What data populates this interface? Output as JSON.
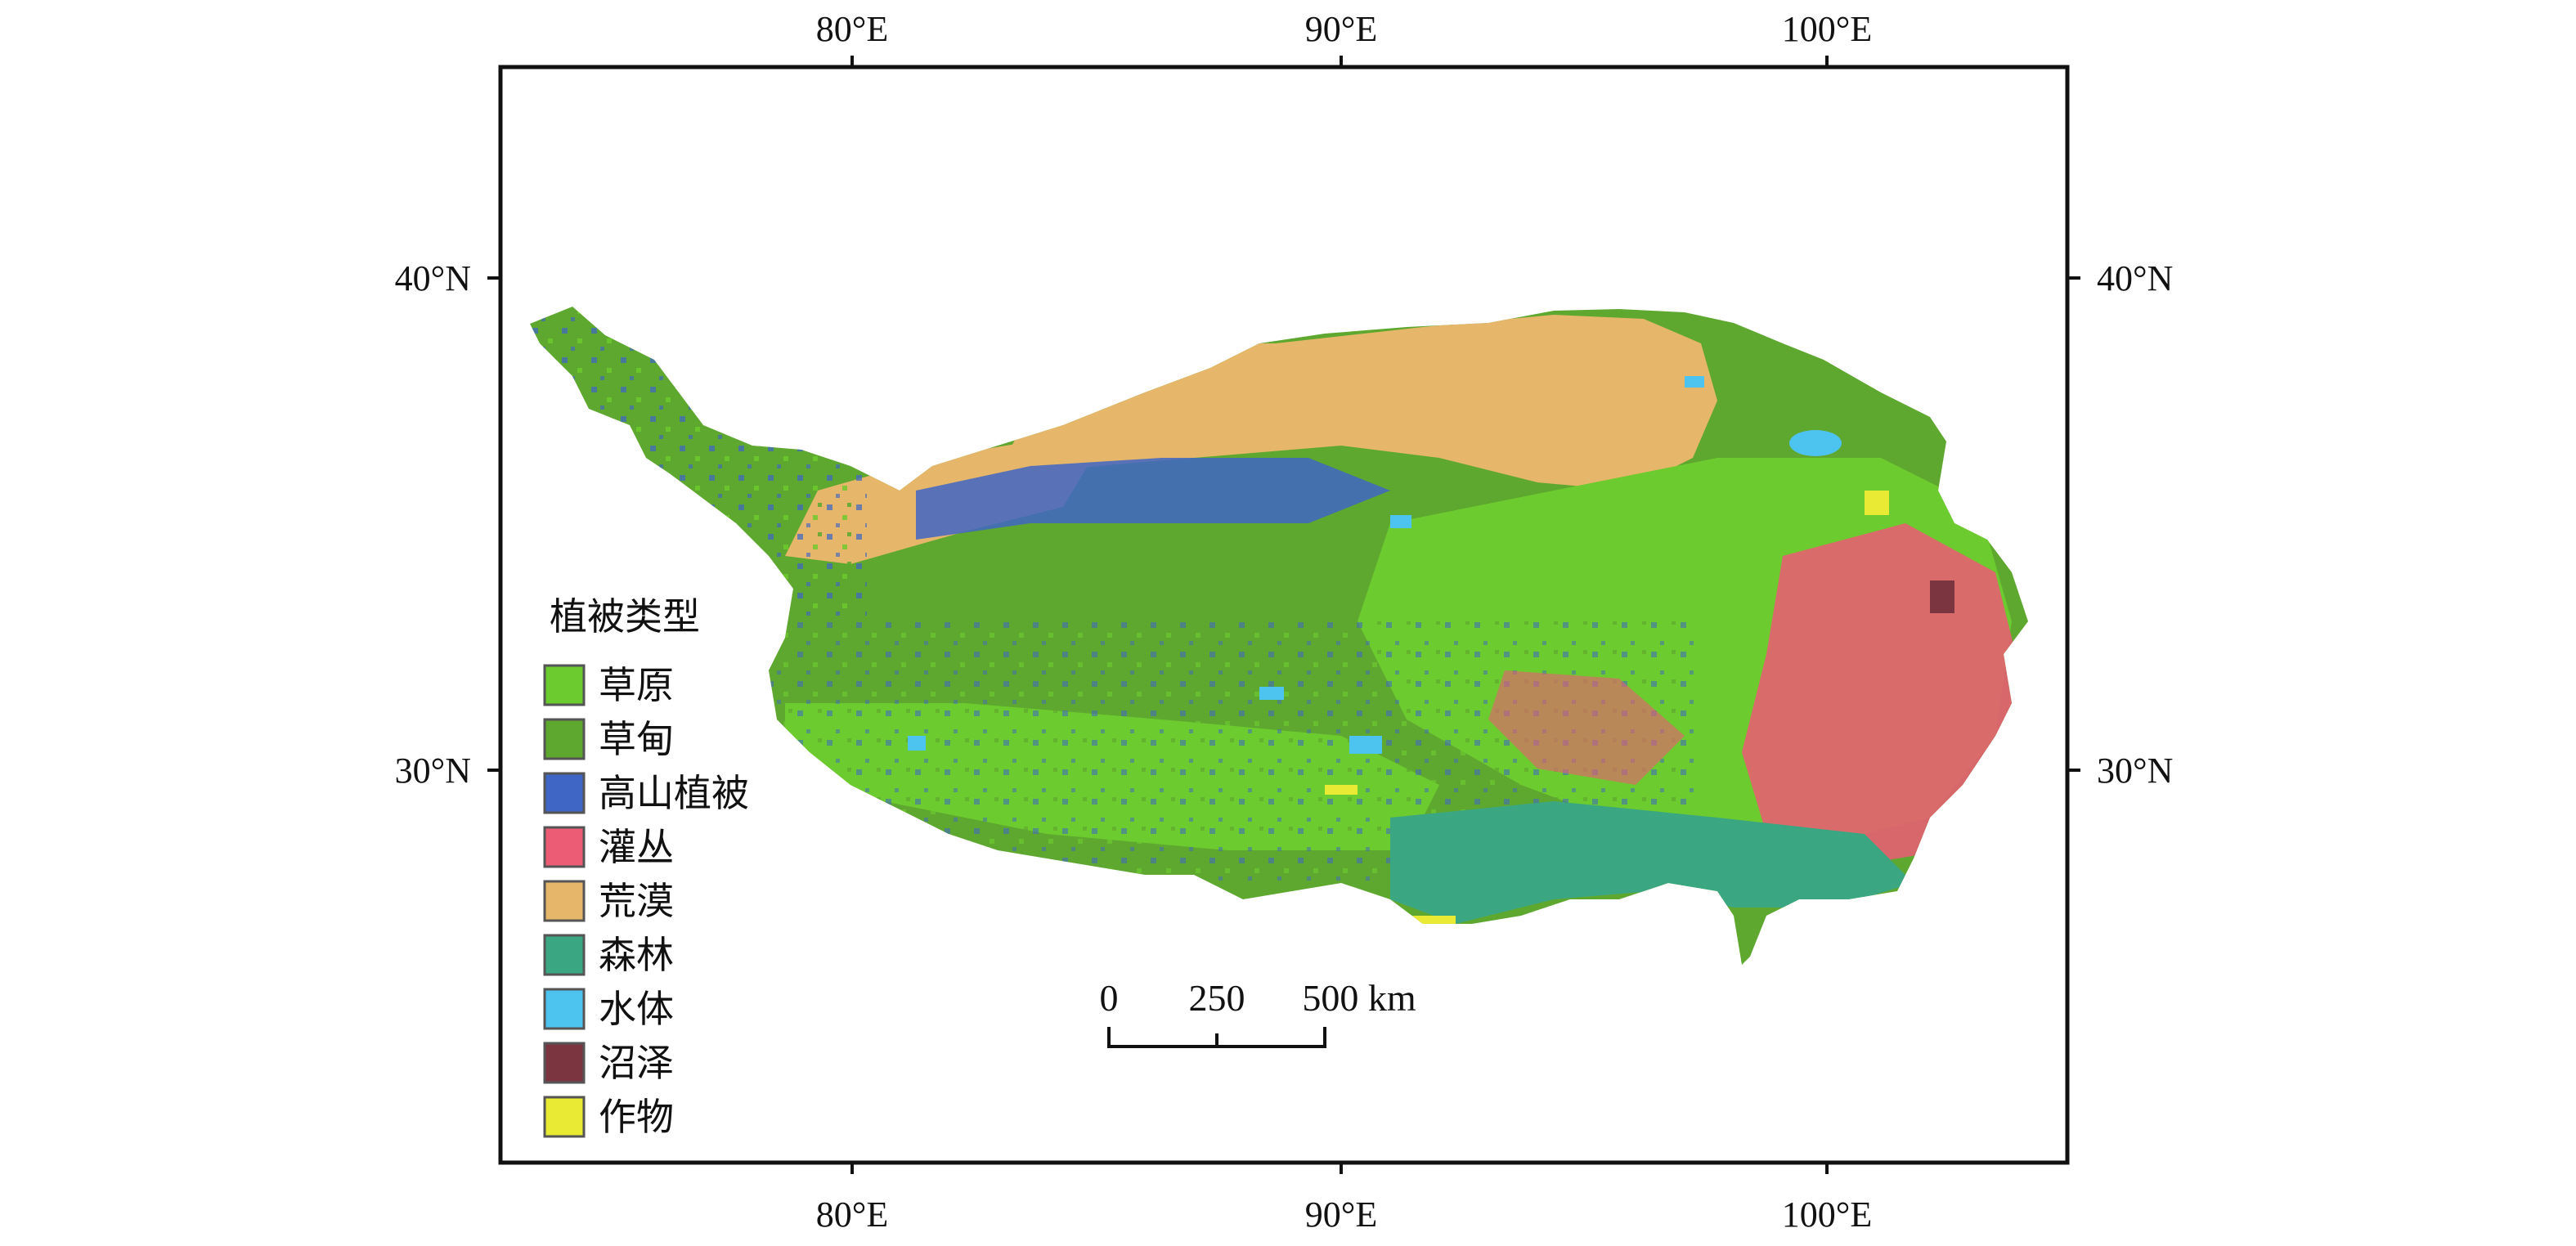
{
  "lon_labels": [
    "80°E",
    "90°E",
    "100°E"
  ],
  "lat_labels": [
    "40°N",
    "30°N"
  ],
  "legend": {
    "title": "植被类型",
    "items": [
      {
        "label": "草原",
        "color": "#6ccb2e"
      },
      {
        "label": "草甸",
        "color": "#5fa830"
      },
      {
        "label": "高山植被",
        "color": "#3f66c4"
      },
      {
        "label": "灌丛",
        "color": "#ec5c74"
      },
      {
        "label": "荒漠",
        "color": "#e6b76a"
      },
      {
        "label": "森林",
        "color": "#3aa682"
      },
      {
        "label": "水体",
        "color": "#4dc3ef"
      },
      {
        "label": "沼泽",
        "color": "#7a3540"
      },
      {
        "label": "作物",
        "color": "#e8ea34"
      }
    ]
  },
  "scale_bar": {
    "labels": [
      "0",
      "250",
      "500 km"
    ]
  }
}
